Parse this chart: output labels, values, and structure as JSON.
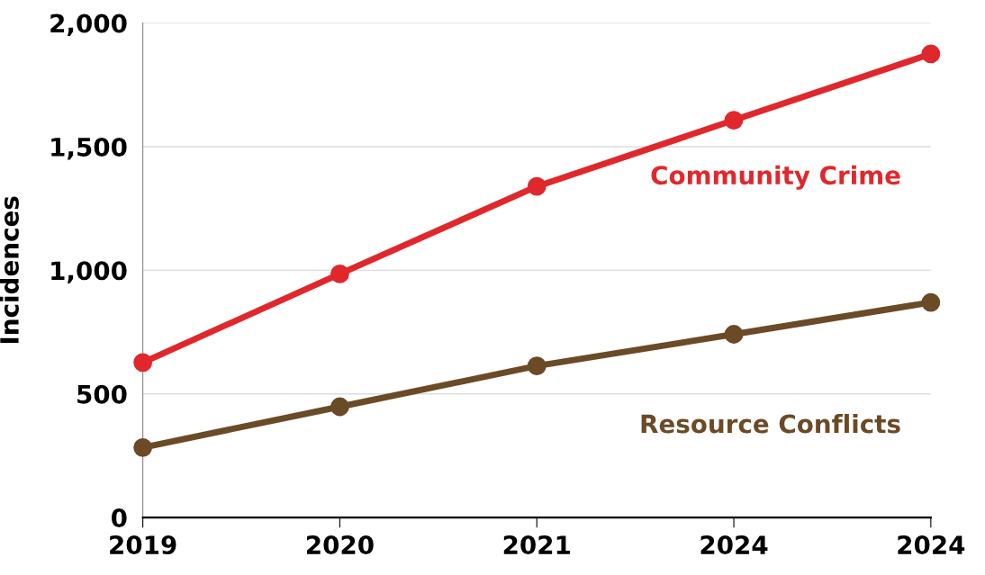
{
  "chart_data": {
    "type": "line",
    "ylabel": "Incidences",
    "categories": [
      "2019",
      "2020",
      "2021",
      "2024",
      "2024"
    ],
    "series": [
      {
        "name": "Community Crime",
        "color": "#e0282c",
        "values": [
          627,
          985,
          1339,
          1607,
          1875
        ]
      },
      {
        "name": "Resource Conflicts",
        "color": "#6b4a26",
        "values": [
          283,
          448,
          613,
          741,
          870
        ]
      }
    ],
    "ylim": [
      0,
      2000
    ],
    "yticks": [
      0,
      {
        "value": 500,
        "label": "500"
      },
      {
        "value": 1000,
        "label": "1,000"
      },
      {
        "value": 1500,
        "label": "1,500"
      },
      {
        "value": 2000,
        "label": "2,000"
      }
    ],
    "grid": "y",
    "legend": false,
    "marker": "circle",
    "line_style": "solid"
  }
}
